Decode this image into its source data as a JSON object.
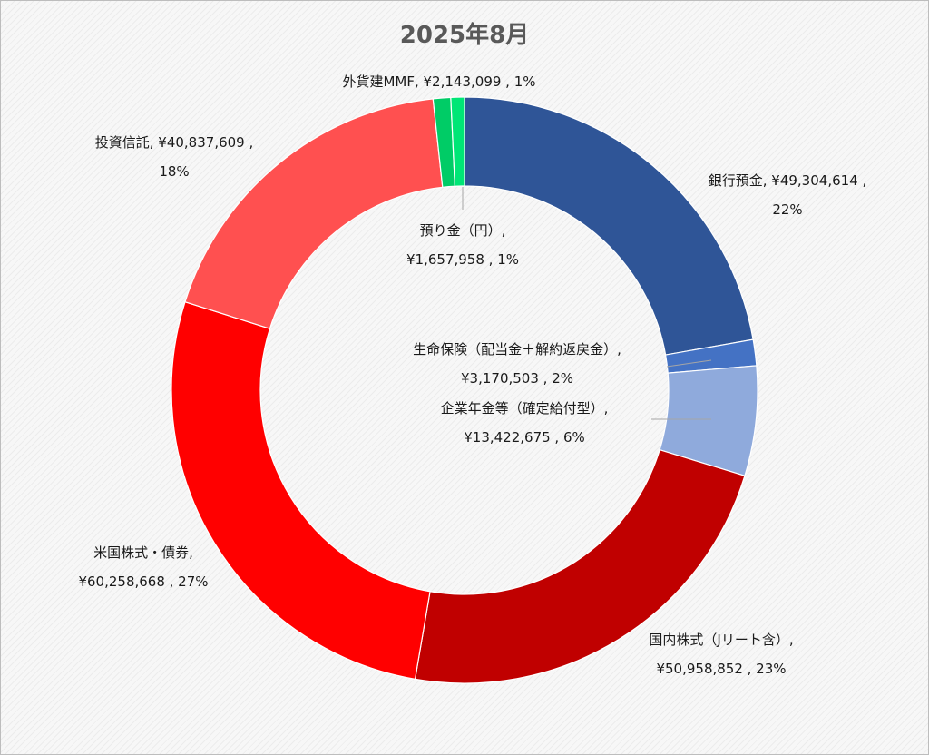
{
  "chart_data": {
    "type": "pie",
    "style": "donut",
    "title": "2025年8月",
    "slices": [
      {
        "name": "銀行預金",
        "value": 49304614,
        "value_text": "¥49,304,614",
        "percent": "22%",
        "color": "#2f5597"
      },
      {
        "name": "生命保険（配当金＋解約返戻金）",
        "value": 3170503,
        "value_text": "¥3,170,503",
        "percent": "2%",
        "color": "#4472c4"
      },
      {
        "name": "企業年金等（確定給付型）",
        "value": 13422675,
        "value_text": "¥13,422,675",
        "percent": "6%",
        "color": "#8faadc"
      },
      {
        "name": "国内株式（Jリート含）",
        "value": 50958852,
        "value_text": "¥50,958,852",
        "percent": "23%",
        "color": "#c00000"
      },
      {
        "name": "米国株式・債券",
        "value": 60258668,
        "value_text": "¥60,258,668",
        "percent": "27%",
        "color": "#ff0000"
      },
      {
        "name": "投資信託",
        "value": 40837609,
        "value_text": "¥40,837,609",
        "percent": "18%",
        "color": "#ff5050"
      },
      {
        "name": "外貨建MMF",
        "value": 2143099,
        "value_text": "¥2,143,099",
        "percent": "1%",
        "color": "#00cc66"
      },
      {
        "name": "預り金（円）",
        "value": 1657958,
        "value_text": "¥1,657,958",
        "percent": "1%",
        "color": "#00e676"
      }
    ],
    "labels": [
      {
        "line1": "銀行預金, ¥49,304,614 ,",
        "line2": "22%"
      },
      {
        "line1": "生命保険（配当金＋解約返戻金）,",
        "line2": "¥3,170,503 , 2%"
      },
      {
        "line1": "企業年金等（確定給付型）,",
        "line2": "¥13,422,675 , 6%"
      },
      {
        "line1": "国内株式（Jリート含）,",
        "line2": "¥50,958,852 , 23%"
      },
      {
        "line1": "米国株式・債券,",
        "line2": "¥60,258,668 , 27%"
      },
      {
        "line1": "投資信託, ¥40,837,609 ,",
        "line2": "18%"
      },
      {
        "line1": "外貨建MMF, ¥2,143,099 , 1%",
        "line2": ""
      },
      {
        "line1": "預り金（円）,",
        "line2": "¥1,657,958 , 1%"
      }
    ]
  }
}
